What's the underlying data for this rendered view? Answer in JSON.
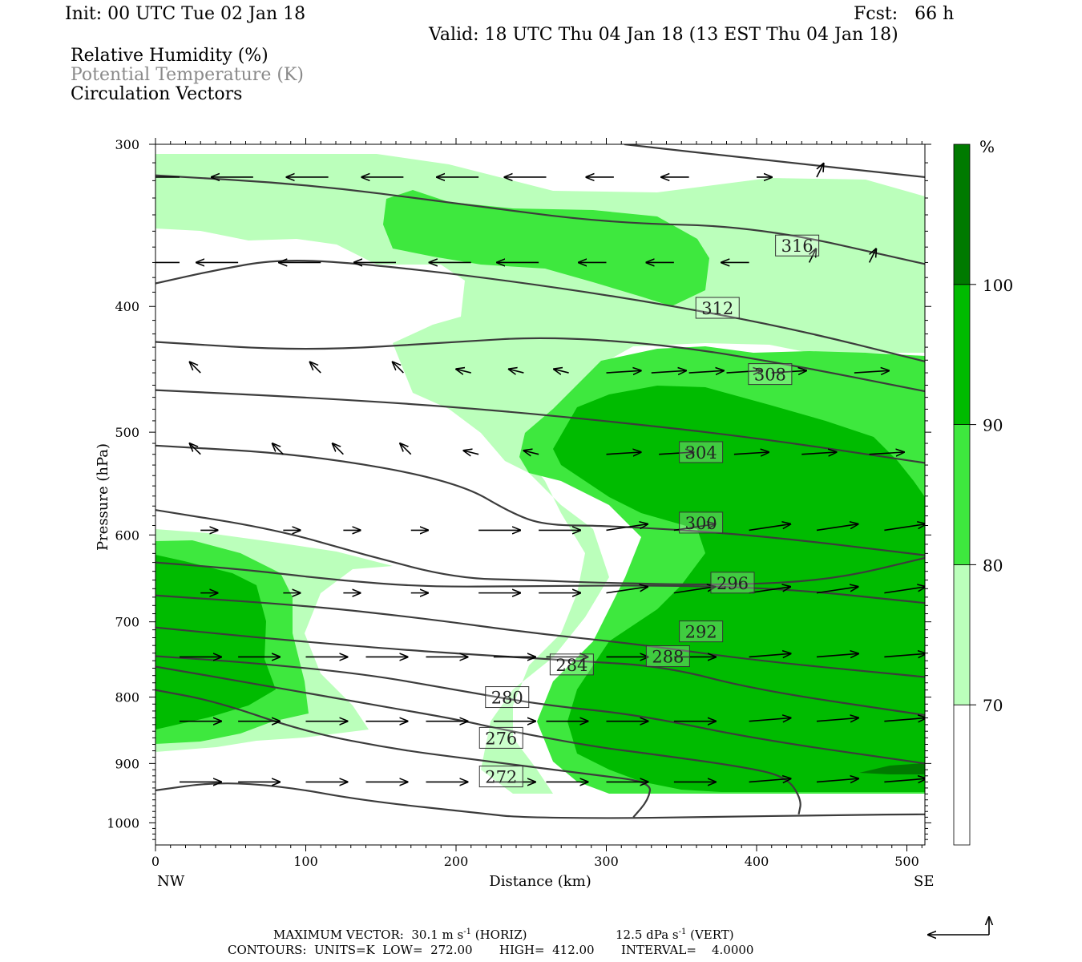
{
  "header": {
    "init": "Init: 00 UTC Tue 02 Jan 18",
    "fcst": "Fcst:   66 h",
    "valid": "Valid: 18 UTC Thu 04 Jan 18 (13 EST Thu 04 Jan 18)",
    "fields": [
      "Relative Humidity (%)",
      "Potential Temperature (K)",
      "Circulation Vectors"
    ]
  },
  "chart_data": {
    "type": "heatmap",
    "xlabel": "Distance (km)",
    "ylabel": "Pressure (hPa)",
    "xlim": [
      0,
      512
    ],
    "ylim": [
      1040,
      300
    ],
    "y_scale": "log",
    "x_ticks": [
      0,
      100,
      200,
      300,
      400,
      500
    ],
    "y_ticks": [
      300,
      400,
      500,
      600,
      700,
      800,
      900,
      1000
    ],
    "x_end_labels": {
      "left": "NW",
      "right": "SE"
    },
    "colorbar": {
      "unit": "%",
      "levels": [
        70,
        80,
        90,
        100
      ],
      "colors": [
        "#ffffff",
        "#bbffbb",
        "#3ee83e",
        "#00bb00",
        "#007a00"
      ]
    },
    "theta_contours": [
      {
        "value": 272,
        "label": "272",
        "label_at": [
          230,
          921
        ],
        "points": [
          [
            0,
            944
          ],
          [
            40,
            930
          ],
          [
            85,
            937
          ],
          [
            140,
            962
          ],
          [
            220,
            984
          ],
          [
            240,
            990
          ],
          [
            300,
            992
          ],
          [
            360,
            990
          ],
          [
            460,
            986
          ],
          [
            512,
            985
          ]
        ]
      },
      {
        "value": 276,
        "label": "276",
        "label_at": [
          230,
          860
        ],
        "points": [
          [
            0,
            790
          ],
          [
            40,
            806
          ],
          [
            100,
            851
          ],
          [
            160,
            878
          ],
          [
            220,
            896
          ],
          [
            290,
            918
          ],
          [
            330,
            930
          ],
          [
            328,
            960
          ],
          [
            318,
            990
          ]
        ]
      },
      {
        "value": 280,
        "label": "280",
        "label_at": [
          234,
          800
        ],
        "points": [
          [
            0,
            758
          ],
          [
            60,
            779
          ],
          [
            150,
            813
          ],
          [
            200,
            832
          ],
          [
            230,
            847
          ],
          [
            290,
            873
          ],
          [
            330,
            885
          ],
          [
            390,
            905
          ],
          [
            420,
            921
          ],
          [
            430,
            960
          ],
          [
            428,
            985
          ]
        ]
      },
      {
        "value": 284,
        "label": "284",
        "label_at": [
          277,
          755
        ],
        "points": [
          [
            0,
            744
          ],
          [
            60,
            752
          ],
          [
            140,
            768
          ],
          [
            200,
            790
          ],
          [
            260,
            812
          ],
          [
            320,
            825
          ],
          [
            400,
            862
          ],
          [
            512,
            900
          ]
        ]
      },
      {
        "value": 288,
        "label": "288",
        "label_at": [
          341,
          744
        ],
        "points": [
          [
            0,
            707
          ],
          [
            80,
            722
          ],
          [
            160,
            735
          ],
          [
            220,
            743
          ],
          [
            280,
            750
          ],
          [
            340,
            758
          ],
          [
            400,
            790
          ],
          [
            512,
            826
          ]
        ]
      },
      {
        "value": 292,
        "label": "292",
        "label_at": [
          363,
          712
        ],
        "points": [
          [
            0,
            668
          ],
          [
            100,
            680
          ],
          [
            180,
            696
          ],
          [
            250,
            714
          ],
          [
            320,
            728
          ],
          [
            400,
            750
          ],
          [
            512,
            772
          ]
        ]
      },
      {
        "value": 296,
        "label": "296",
        "label_at": [
          384,
          653
        ],
        "points": [
          [
            0,
            630
          ],
          [
            60,
            638
          ],
          [
            120,
            650
          ],
          [
            180,
            658
          ],
          [
            250,
            657
          ],
          [
            340,
            656
          ],
          [
            420,
            660
          ],
          [
            512,
            677
          ]
        ]
      },
      {
        "value": 300,
        "label": "300",
        "label_at": [
          363,
          587
        ],
        "points": [
          [
            0,
            574
          ],
          [
            80,
            594
          ],
          [
            140,
            622
          ],
          [
            200,
            648
          ],
          [
            250,
            650
          ],
          [
            290,
            653
          ],
          [
            380,
            656
          ],
          [
            450,
            650
          ],
          [
            512,
            625
          ]
        ]
      },
      {
        "value": 304,
        "label": "304",
        "label_at": [
          363,
          518
        ],
        "points": [
          [
            0,
            512
          ],
          [
            100,
            520
          ],
          [
            200,
            545
          ],
          [
            240,
            580
          ],
          [
            262,
            590
          ],
          [
            300,
            590
          ],
          [
            400,
            600
          ],
          [
            512,
            622
          ]
        ]
      },
      {
        "value": 308,
        "label": "308",
        "label_at": [
          409,
          451
        ],
        "points": [
          [
            0,
            464
          ],
          [
            100,
            470
          ],
          [
            200,
            478
          ],
          [
            300,
            490
          ],
          [
            400,
            505
          ],
          [
            512,
            528
          ]
        ]
      },
      {
        "value": 312,
        "label": "312",
        "label_at": [
          374,
          401
        ],
        "points": [
          [
            0,
            426
          ],
          [
            100,
            433
          ],
          [
            200,
            426
          ],
          [
            260,
            422
          ],
          [
            340,
            428
          ],
          [
            420,
            443
          ],
          [
            512,
            465
          ]
        ]
      },
      {
        "value": 316,
        "label": "316",
        "label_at": [
          427,
          359
        ],
        "points": [
          [
            0,
            384
          ],
          [
            40,
            375
          ],
          [
            80,
            368
          ],
          [
            130,
            370
          ],
          [
            220,
            380
          ],
          [
            320,
            395
          ],
          [
            420,
            415
          ],
          [
            512,
            441
          ]
        ]
      },
      {
        "value": 320,
        "label": "",
        "label_at": null,
        "points": [
          [
            0,
            317
          ],
          [
            100,
            322
          ],
          [
            200,
            333
          ],
          [
            300,
            345
          ],
          [
            400,
            347
          ],
          [
            512,
            371
          ]
        ]
      },
      {
        "value": 324,
        "label": "",
        "label_at": null,
        "points": [
          [
            312,
            300
          ],
          [
            400,
            308
          ],
          [
            512,
            318
          ]
        ]
      }
    ],
    "vector_rows": [
      {
        "p": 318,
        "xs": [
          16,
          65,
          115,
          165,
          215,
          260,
          305,
          355,
          400,
          440
        ]
      },
      {
        "p": 370,
        "xs": [
          16,
          55,
          110,
          160,
          210,
          255,
          300,
          345,
          395,
          435,
          475
        ]
      },
      {
        "p": 450,
        "xs": [
          30,
          110,
          165,
          210,
          245,
          275,
          300,
          330,
          355,
          380,
          410,
          465
        ]
      },
      {
        "p": 520,
        "xs": [
          30,
          85,
          125,
          170,
          215,
          255,
          300,
          335,
          385,
          430,
          475
        ]
      },
      {
        "p": 595,
        "xs": [
          30,
          85,
          125,
          170,
          215,
          255,
          300,
          345,
          395,
          440,
          485
        ]
      },
      {
        "p": 665,
        "xs": [
          30,
          85,
          125,
          170,
          215,
          255,
          300,
          345,
          395,
          440,
          485
        ]
      },
      {
        "p": 745,
        "xs": [
          16,
          55,
          100,
          140,
          180,
          225,
          260,
          300,
          345,
          395,
          440,
          485
        ]
      },
      {
        "p": 835,
        "xs": [
          16,
          55,
          100,
          140,
          180,
          225,
          260,
          300,
          345,
          395,
          440,
          485
        ]
      },
      {
        "p": 930,
        "xs": [
          16,
          55,
          100,
          140,
          180,
          225,
          260,
          300,
          345,
          395,
          440,
          485
        ]
      }
    ]
  },
  "footer": {
    "max_vector": "MAXIMUM VECTOR:  30.1 m s",
    "max_vector_exp": "-1",
    "max_vector_horiz": " (HORIZ)",
    "max_vector_vert_val": "12.5 dPa s",
    "max_vector_vert_exp": "-1",
    "max_vector_vert": " (VERT)",
    "contours": "CONTOURS:  UNITS=K  LOW=  272.00       HIGH=  412.00       INTERVAL=    4.0000"
  }
}
